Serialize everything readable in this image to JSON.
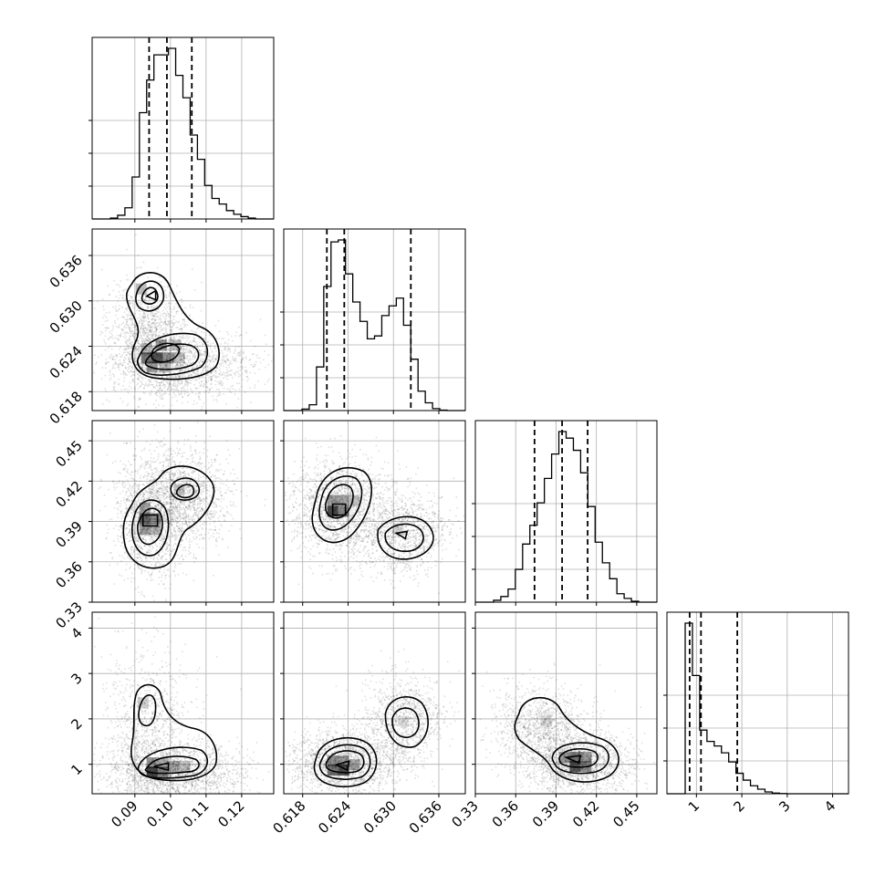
{
  "chart_data": {
    "type": "corner",
    "parameters": [
      {
        "range": [
          0.078,
          0.129
        ],
        "ticks": [
          0.09,
          0.1,
          0.11,
          0.12
        ],
        "tick_labels": [
          "0.09",
          "0.10",
          "0.11",
          "0.12"
        ]
      },
      {
        "range": [
          0.6155,
          0.6395
        ],
        "ticks": [
          0.618,
          0.624,
          0.63,
          0.636
        ],
        "tick_labels": [
          "0.618",
          "0.624",
          "0.630",
          "0.636"
        ]
      },
      {
        "range": [
          0.33,
          0.465
        ],
        "ticks": [
          0.33,
          0.36,
          0.39,
          0.42,
          0.45
        ],
        "tick_labels": [
          "0.33",
          "0.36",
          "0.39",
          "0.42",
          "0.45"
        ]
      },
      {
        "range": [
          0.35,
          4.35
        ],
        "ticks": [
          1,
          2,
          3,
          4
        ],
        "tick_labels": [
          "1",
          "2",
          "3",
          "4"
        ]
      }
    ],
    "quantiles": [
      [
        0.094,
        0.099,
        0.106
      ],
      [
        0.6212,
        0.6235,
        0.6323
      ],
      [
        0.374,
        0.3945,
        0.4135
      ],
      [
        0.85,
        1.1,
        1.9
      ]
    ],
    "histograms": [
      {
        "counts": [
          0.1,
          0.4,
          1.2,
          4.5,
          11.4,
          14.9,
          17.6,
          17.6,
          18.3,
          15.4,
          13.0,
          9.0,
          6.4,
          3.6,
          2.2,
          1.6,
          0.9,
          0.5,
          0.25,
          0.1
        ]
      },
      {
        "counts": [
          0.15,
          0.6,
          4.5,
          12.8,
          17.4,
          17.6,
          14.1,
          11.2,
          9.2,
          7.4,
          7.7,
          9.8,
          10.8,
          11.6,
          8.8,
          5.3,
          2.0,
          0.8,
          0.2,
          0.05
        ]
      },
      {
        "counts": [
          0.2,
          0.6,
          1.4,
          3.5,
          6.2,
          8.2,
          10.6,
          13.2,
          15.8,
          18.2,
          17.5,
          16.2,
          13.8,
          10.2,
          6.4,
          4.2,
          2.5,
          0.9,
          0.4,
          0.1
        ]
      },
      {
        "counts": [
          7.5,
          5.2,
          2.8,
          2.3,
          2.1,
          1.8,
          1.4,
          0.9,
          0.6,
          0.35,
          0.2,
          0.08,
          0.03,
          0.01,
          0,
          0,
          0,
          0,
          0,
          0
        ]
      }
    ],
    "grid": true
  }
}
